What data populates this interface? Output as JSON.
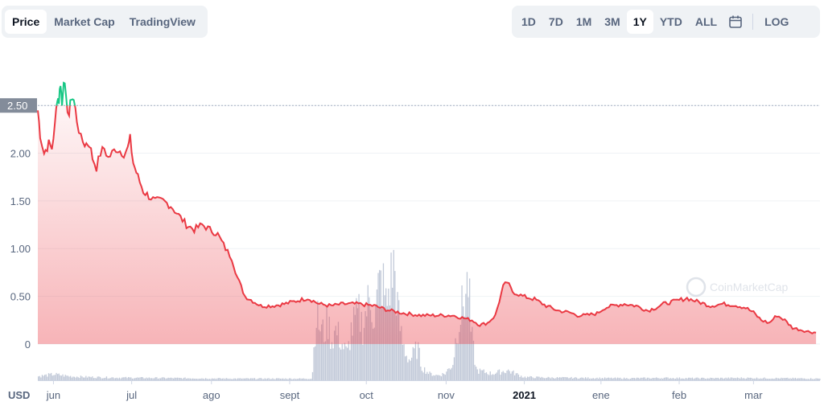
{
  "tabs_left": [
    {
      "label": "Price",
      "active": true
    },
    {
      "label": "Market Cap",
      "active": false
    },
    {
      "label": "TradingView",
      "active": false
    }
  ],
  "tabs_right": [
    {
      "label": "1D",
      "active": false
    },
    {
      "label": "7D",
      "active": false
    },
    {
      "label": "1M",
      "active": false
    },
    {
      "label": "3M",
      "active": false
    },
    {
      "label": "1Y",
      "active": true
    },
    {
      "label": "YTD",
      "active": false
    },
    {
      "label": "ALL",
      "active": false
    }
  ],
  "calendar_icon": "calendar-icon",
  "log_label": "LOG",
  "watermark": "CoinMarketCap",
  "colors": {
    "line_down": "#ea3943",
    "line_up": "#16c784",
    "volume": "#c1c9d8",
    "grid": "#eff2f5",
    "price_label_bg": "#838c9a"
  },
  "chart_data": {
    "type": "line",
    "currency_label": "USD",
    "ylim": [
      -0.38,
      3.1
    ],
    "yticks": [
      {
        "value": 2.5,
        "label": "2.50"
      },
      {
        "value": 2.0,
        "label": "2.00"
      },
      {
        "value": 1.5,
        "label": "1.50"
      },
      {
        "value": 1.0,
        "label": "1.00"
      },
      {
        "value": 0.5,
        "label": "0.50"
      },
      {
        "value": 0,
        "label": "0"
      }
    ],
    "reference_price": 2.5,
    "xticks": [
      {
        "label": "jun",
        "t": 0.02,
        "bold": false
      },
      {
        "label": "jul",
        "t": 0.12,
        "bold": false
      },
      {
        "label": "ago",
        "t": 0.222,
        "bold": false
      },
      {
        "label": "sept",
        "t": 0.322,
        "bold": false
      },
      {
        "label": "oct",
        "t": 0.42,
        "bold": false
      },
      {
        "label": "nov",
        "t": 0.522,
        "bold": false
      },
      {
        "label": "2021",
        "t": 0.622,
        "bold": true
      },
      {
        "label": "ene",
        "t": 0.72,
        "bold": false
      },
      {
        "label": "feb",
        "t": 0.82,
        "bold": false
      },
      {
        "label": "mar",
        "t": 0.915,
        "bold": false
      }
    ],
    "price_series": [
      [
        0.0,
        2.45
      ],
      [
        0.003,
        2.2
      ],
      [
        0.008,
        2.0
      ],
      [
        0.014,
        2.1
      ],
      [
        0.018,
        2.05
      ],
      [
        0.022,
        2.3
      ],
      [
        0.025,
        2.6
      ],
      [
        0.027,
        2.55
      ],
      [
        0.029,
        2.75
      ],
      [
        0.031,
        2.5
      ],
      [
        0.033,
        2.8
      ],
      [
        0.036,
        2.55
      ],
      [
        0.04,
        2.4
      ],
      [
        0.043,
        2.6
      ],
      [
        0.046,
        2.55
      ],
      [
        0.05,
        2.35
      ],
      [
        0.055,
        2.15
      ],
      [
        0.06,
        2.1
      ],
      [
        0.066,
        2.1
      ],
      [
        0.07,
        1.95
      ],
      [
        0.075,
        1.85
      ],
      [
        0.08,
        2.0
      ],
      [
        0.085,
        2.05
      ],
      [
        0.09,
        1.95
      ],
      [
        0.1,
        2.05
      ],
      [
        0.11,
        2.0
      ],
      [
        0.115,
        2.05
      ],
      [
        0.118,
        2.15
      ],
      [
        0.122,
        1.9
      ],
      [
        0.128,
        1.75
      ],
      [
        0.135,
        1.6
      ],
      [
        0.142,
        1.55
      ],
      [
        0.15,
        1.5
      ],
      [
        0.16,
        1.5
      ],
      [
        0.17,
        1.45
      ],
      [
        0.18,
        1.35
      ],
      [
        0.19,
        1.25
      ],
      [
        0.2,
        1.2
      ],
      [
        0.21,
        1.25
      ],
      [
        0.22,
        1.2
      ],
      [
        0.23,
        1.15
      ],
      [
        0.24,
        1.0
      ],
      [
        0.248,
        0.9
      ],
      [
        0.255,
        0.7
      ],
      [
        0.265,
        0.5
      ],
      [
        0.275,
        0.45
      ],
      [
        0.285,
        0.4
      ],
      [
        0.3,
        0.4
      ],
      [
        0.315,
        0.42
      ],
      [
        0.33,
        0.45
      ],
      [
        0.345,
        0.48
      ],
      [
        0.36,
        0.42
      ],
      [
        0.375,
        0.4
      ],
      [
        0.39,
        0.42
      ],
      [
        0.41,
        0.42
      ],
      [
        0.43,
        0.4
      ],
      [
        0.45,
        0.35
      ],
      [
        0.47,
        0.32
      ],
      [
        0.49,
        0.3
      ],
      [
        0.51,
        0.3
      ],
      [
        0.53,
        0.3
      ],
      [
        0.545,
        0.27
      ],
      [
        0.555,
        0.25
      ],
      [
        0.565,
        0.2
      ],
      [
        0.575,
        0.22
      ],
      [
        0.585,
        0.3
      ],
      [
        0.59,
        0.45
      ],
      [
        0.595,
        0.6
      ],
      [
        0.6,
        0.65
      ],
      [
        0.607,
        0.55
      ],
      [
        0.62,
        0.5
      ],
      [
        0.635,
        0.47
      ],
      [
        0.65,
        0.4
      ],
      [
        0.665,
        0.35
      ],
      [
        0.68,
        0.33
      ],
      [
        0.69,
        0.3
      ],
      [
        0.7,
        0.3
      ],
      [
        0.715,
        0.32
      ],
      [
        0.725,
        0.38
      ],
      [
        0.735,
        0.4
      ],
      [
        0.75,
        0.42
      ],
      [
        0.765,
        0.4
      ],
      [
        0.78,
        0.35
      ],
      [
        0.79,
        0.38
      ],
      [
        0.8,
        0.42
      ],
      [
        0.815,
        0.45
      ],
      [
        0.83,
        0.48
      ],
      [
        0.845,
        0.44
      ],
      [
        0.86,
        0.4
      ],
      [
        0.875,
        0.42
      ],
      [
        0.89,
        0.41
      ],
      [
        0.905,
        0.38
      ],
      [
        0.915,
        0.33
      ],
      [
        0.925,
        0.25
      ],
      [
        0.935,
        0.22
      ],
      [
        0.945,
        0.3
      ],
      [
        0.955,
        0.25
      ],
      [
        0.965,
        0.17
      ],
      [
        0.975,
        0.15
      ],
      [
        0.985,
        0.13
      ],
      [
        0.995,
        0.12
      ]
    ],
    "volume_series": [
      [
        0.0,
        0.012
      ],
      [
        0.02,
        0.018
      ],
      [
        0.04,
        0.012
      ],
      [
        0.06,
        0.01
      ],
      [
        0.1,
        0.008
      ],
      [
        0.15,
        0.007
      ],
      [
        0.2,
        0.006
      ],
      [
        0.25,
        0.005
      ],
      [
        0.3,
        0.005
      ],
      [
        0.35,
        0.005
      ],
      [
        0.355,
        0.2
      ],
      [
        0.36,
        0.16
      ],
      [
        0.365,
        0.14
      ],
      [
        0.37,
        0.18
      ],
      [
        0.375,
        0.12
      ],
      [
        0.38,
        0.15
      ],
      [
        0.385,
        0.13
      ],
      [
        0.39,
        0.1
      ],
      [
        0.395,
        0.08
      ],
      [
        0.4,
        0.15
      ],
      [
        0.405,
        0.18
      ],
      [
        0.41,
        0.2
      ],
      [
        0.415,
        0.16
      ],
      [
        0.42,
        0.22
      ],
      [
        0.425,
        0.25
      ],
      [
        0.43,
        0.18
      ],
      [
        0.435,
        0.28
      ],
      [
        0.44,
        0.3
      ],
      [
        0.445,
        0.22
      ],
      [
        0.45,
        0.3
      ],
      [
        0.455,
        0.35
      ],
      [
        0.46,
        0.2
      ],
      [
        0.465,
        0.12
      ],
      [
        0.47,
        0.08
      ],
      [
        0.475,
        0.06
      ],
      [
        0.48,
        0.08
      ],
      [
        0.485,
        0.1
      ],
      [
        0.49,
        0.04
      ],
      [
        0.5,
        0.02
      ],
      [
        0.51,
        0.015
      ],
      [
        0.52,
        0.02
      ],
      [
        0.53,
        0.05
      ],
      [
        0.535,
        0.15
      ],
      [
        0.54,
        0.2
      ],
      [
        0.545,
        0.25
      ],
      [
        0.55,
        0.3
      ],
      [
        0.553,
        0.15
      ],
      [
        0.56,
        0.03
      ],
      [
        0.58,
        0.02
      ],
      [
        0.6,
        0.03
      ],
      [
        0.62,
        0.01
      ],
      [
        0.65,
        0.008
      ],
      [
        0.7,
        0.007
      ],
      [
        0.75,
        0.006
      ],
      [
        0.8,
        0.007
      ],
      [
        0.85,
        0.006
      ],
      [
        0.9,
        0.007
      ],
      [
        0.95,
        0.006
      ],
      [
        1.0,
        0.005
      ]
    ]
  }
}
